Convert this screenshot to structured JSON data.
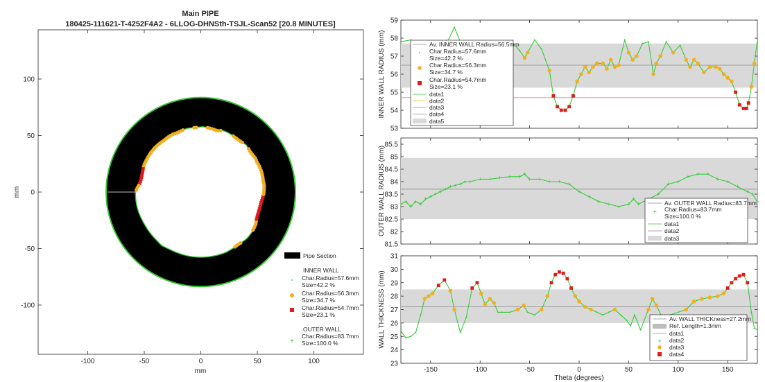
{
  "left": {
    "title": "Main PIPE",
    "subtitle": "180425-111621-T-4252F4A2 - 6LLOG-DHNSth-TSJL-Scan52 [20.8 MINUTES]",
    "xlabel": "mm",
    "ylabel": "mm",
    "xticks": [
      "-100",
      "-50",
      "0",
      "50",
      "100"
    ],
    "yticks": [
      "100",
      "50",
      "0",
      "-50",
      "-100"
    ],
    "legend": {
      "pipe_section": "Pipe Section",
      "inner_header": "INNER WALL",
      "inner_items": [
        {
          "radius": "Char.Radius=57.6mm",
          "size": "Size=42.2 %"
        },
        {
          "radius": "Char.Radius=56.3mm",
          "size": "Size=34.7 %"
        },
        {
          "radius": "Char.Radius=54.7mm",
          "size": "Size=23.1 %"
        }
      ],
      "outer_header": "OUTER WALL",
      "outer_radius": "Char.Radius=83.7mm",
      "outer_size": "Size=100.0 %"
    }
  },
  "colors": {
    "green": "#33cc33",
    "orange": "#f2b01e",
    "red": "#e01b1b",
    "band": "#d9d9d9",
    "black": "#000000"
  },
  "chart_data": [
    {
      "type": "scatter",
      "title": "Inner wall radius vs theta",
      "ylabel": "INNER WALL RADIUS (mm)",
      "xlim": [
        -180,
        180
      ],
      "ylim": [
        53,
        59
      ],
      "yticks": [
        "59",
        "58",
        "57",
        "56",
        "55",
        "54",
        "53"
      ],
      "band": [
        55.25,
        57.7
      ],
      "avg_line": 56.5,
      "ref_line": 54.7,
      "theta": [
        -180,
        -170,
        -162,
        -155,
        -150,
        -145,
        -140,
        -132,
        -126,
        -120,
        -113,
        -105,
        -98,
        -90,
        -82,
        -75,
        -68,
        -60,
        -55,
        -52,
        -45,
        -38,
        -30,
        -26,
        -22,
        -18,
        -14,
        -10,
        -6,
        -2,
        2,
        6,
        10,
        14,
        18,
        24,
        28,
        32,
        36,
        40,
        46,
        50,
        54,
        58,
        64,
        70,
        75,
        78,
        82,
        88,
        95,
        102,
        108,
        112,
        116,
        120,
        126,
        132,
        138,
        142,
        146,
        150,
        154,
        158,
        162,
        166,
        169,
        171,
        174,
        177,
        180
      ],
      "radius": [
        57.8,
        57.9,
        57.8,
        57.5,
        57.4,
        57.5,
        57.6,
        57.9,
        58.6,
        57.8,
        57.6,
        57.6,
        57.7,
        57.6,
        57.7,
        57.7,
        57.8,
        57.3,
        56.9,
        57.2,
        57.9,
        57.4,
        56.2,
        54.8,
        54.2,
        54.0,
        54.0,
        54.2,
        54.8,
        55.6,
        56.0,
        56.4,
        56.1,
        56.4,
        56.6,
        56.6,
        56.3,
        56.8,
        56.4,
        56.5,
        57.9,
        57.2,
        56.8,
        57.0,
        57.7,
        57.8,
        56.0,
        56.6,
        57.0,
        57.8,
        57.2,
        57.6,
        56.8,
        56.4,
        56.8,
        56.6,
        56.1,
        56.4,
        56.4,
        56.3,
        56.0,
        55.8,
        55.6,
        55.0,
        54.3,
        54.1,
        54.1,
        54.4,
        55.3,
        56.6,
        57.9
      ],
      "legend": [
        "Av. INNER WALL Radius=56.5mm",
        "Char.Radius=57.6mm",
        "Size=42.2 %",
        "Char.Radius=56.3mm",
        "Size=34.7 %",
        "Char.Radius=54.7mm",
        "Size=23.1 %",
        "data1",
        "data2",
        "data3",
        "data4",
        "data5"
      ]
    },
    {
      "type": "scatter",
      "title": "Outer wall radius vs theta",
      "ylabel": "OUTER WALL RADIUS (mm)",
      "xlim": [
        -180,
        180
      ],
      "ylim": [
        81.5,
        85.75
      ],
      "yticks": [
        "85.5",
        "85",
        "84.5",
        "84",
        "83.5",
        "83",
        "82.5",
        "82",
        "81.5"
      ],
      "band": [
        82.5,
        84.95
      ],
      "avg_line": 83.7,
      "theta": [
        -180,
        -175,
        -170,
        -165,
        -160,
        -155,
        -150,
        -145,
        -140,
        -135,
        -130,
        -125,
        -120,
        -115,
        -110,
        -100,
        -90,
        -80,
        -70,
        -60,
        -55,
        -50,
        -40,
        -30,
        -20,
        -10,
        0,
        10,
        20,
        30,
        40,
        50,
        55,
        60,
        70,
        80,
        90,
        100,
        110,
        120,
        130,
        140,
        150,
        160,
        170,
        175,
        180
      ],
      "radius": [
        83.1,
        83.2,
        83.0,
        83.2,
        83.1,
        83.3,
        83.4,
        83.5,
        83.6,
        83.7,
        83.8,
        83.85,
        83.9,
        84.0,
        84.0,
        84.1,
        84.1,
        84.15,
        84.2,
        84.2,
        84.3,
        84.1,
        84.1,
        84.0,
        84.0,
        83.9,
        83.6,
        83.4,
        83.2,
        83.1,
        83.0,
        83.1,
        83.3,
        83.1,
        83.3,
        83.5,
        83.9,
        84.0,
        84.2,
        84.3,
        84.3,
        84.1,
        84.0,
        83.8,
        83.6,
        83.5,
        83.2
      ],
      "legend": [
        "Av. OUTER WALL Radius=83.7mm",
        "Char.Radius=83.7mm",
        "Size=100.0 %",
        "data1",
        "data2",
        "data3"
      ]
    },
    {
      "type": "scatter",
      "title": "Wall thickness vs theta",
      "ylabel": "WALL THICKNESS (mm)",
      "xlabel": "Theta (degrees)",
      "xlim": [
        -180,
        180
      ],
      "ylim": [
        23,
        31
      ],
      "xticks": [
        "-150",
        "-100",
        "-50",
        "0",
        "50",
        "100",
        "150"
      ],
      "yticks": [
        "31",
        "30",
        "29",
        "28",
        "27",
        "26",
        "25",
        "24",
        "23"
      ],
      "band": [
        26.0,
        28.5
      ],
      "avg_line": 27.2,
      "theta": [
        -180,
        -175,
        -170,
        -165,
        -160,
        -156,
        -152,
        -148,
        -142,
        -136,
        -130,
        -126,
        -120,
        -114,
        -108,
        -103,
        -99,
        -95,
        -90,
        -86,
        -82,
        -78,
        -70,
        -62,
        -56,
        -52,
        -45,
        -38,
        -32,
        -28,
        -24,
        -20,
        -16,
        -12,
        -8,
        -4,
        0,
        6,
        12,
        18,
        24,
        30,
        36,
        42,
        48,
        52,
        56,
        62,
        70,
        74,
        78,
        84,
        92,
        100,
        108,
        116,
        124,
        132,
        140,
        146,
        150,
        154,
        158,
        162,
        166,
        170,
        174,
        177,
        180
      ],
      "thickness": [
        25.4,
        24.9,
        25.0,
        25.3,
        26.6,
        27.8,
        28.0,
        28.2,
        28.8,
        29.2,
        28.4,
        27.0,
        25.3,
        26.4,
        28.6,
        29.0,
        28.2,
        27.4,
        27.8,
        27.5,
        26.8,
        26.8,
        26.8,
        27.0,
        27.3,
        26.8,
        26.6,
        27.0,
        28.0,
        29.0,
        29.6,
        29.8,
        29.7,
        29.3,
        28.6,
        28.0,
        27.6,
        27.2,
        27.0,
        26.8,
        26.6,
        26.8,
        27.0,
        26.6,
        26.2,
        25.8,
        26.6,
        25.5,
        27.0,
        27.8,
        27.3,
        26.4,
        26.6,
        26.8,
        27.0,
        27.6,
        27.8,
        27.9,
        28.0,
        28.2,
        28.6,
        29.0,
        29.3,
        29.5,
        29.6,
        29.0,
        26.8,
        25.6,
        25.5
      ],
      "legend": [
        "Av. WALL THICKness=27.2mm",
        "Ref. Length=1.3mm",
        "data1",
        "data2",
        "data3",
        "data4"
      ]
    }
  ]
}
